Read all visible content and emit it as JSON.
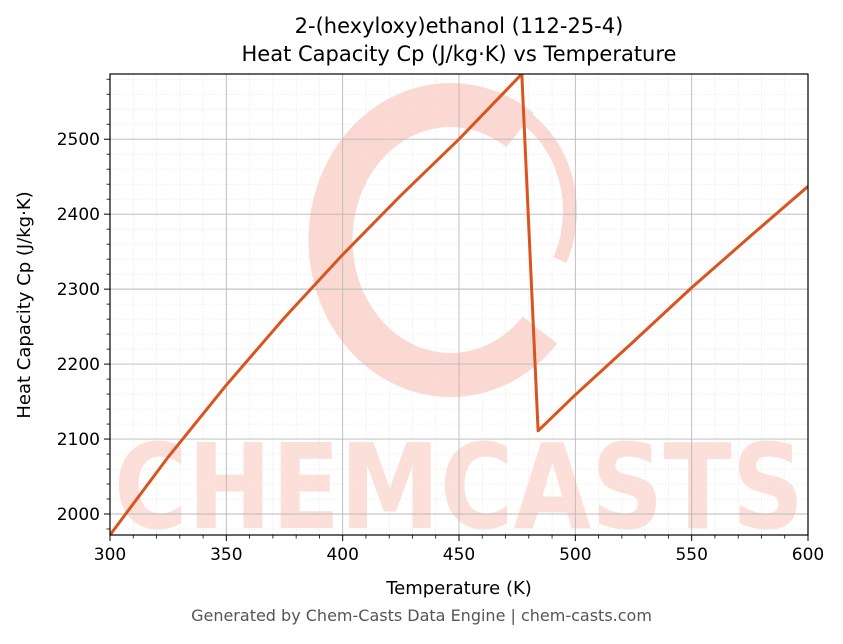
{
  "chart_data": {
    "type": "line",
    "title_line1": "2-(hexyloxy)ethanol (112-25-4)",
    "title_line2": "Heat Capacity Cp (J/kg·K) vs Temperature",
    "xlabel": "Temperature (K)",
    "ylabel": "Heat Capacity Cp (J/kg·K)",
    "xlim": [
      300,
      600
    ],
    "ylim": [
      1972,
      2587
    ],
    "xticks": [
      300,
      350,
      400,
      450,
      500,
      550,
      600
    ],
    "yticks": [
      2000,
      2100,
      2200,
      2300,
      2400,
      2500
    ],
    "grid": true,
    "series": [
      {
        "color": "#d9541e",
        "x": [
          300,
          325,
          350,
          375,
          400,
          425,
          450,
          477,
          484,
          500,
          525,
          550,
          575,
          600
        ],
        "y": [
          1972,
          2076,
          2172,
          2262,
          2346,
          2425,
          2500,
          2587,
          2111,
          2159,
          2230,
          2302,
          2370,
          2437
        ]
      }
    ]
  },
  "watermark": {
    "text": "CHEMCASTS",
    "color": "#fbd9d2"
  },
  "footer": "Generated by Chem-Casts Data Engine | chem-casts.com"
}
